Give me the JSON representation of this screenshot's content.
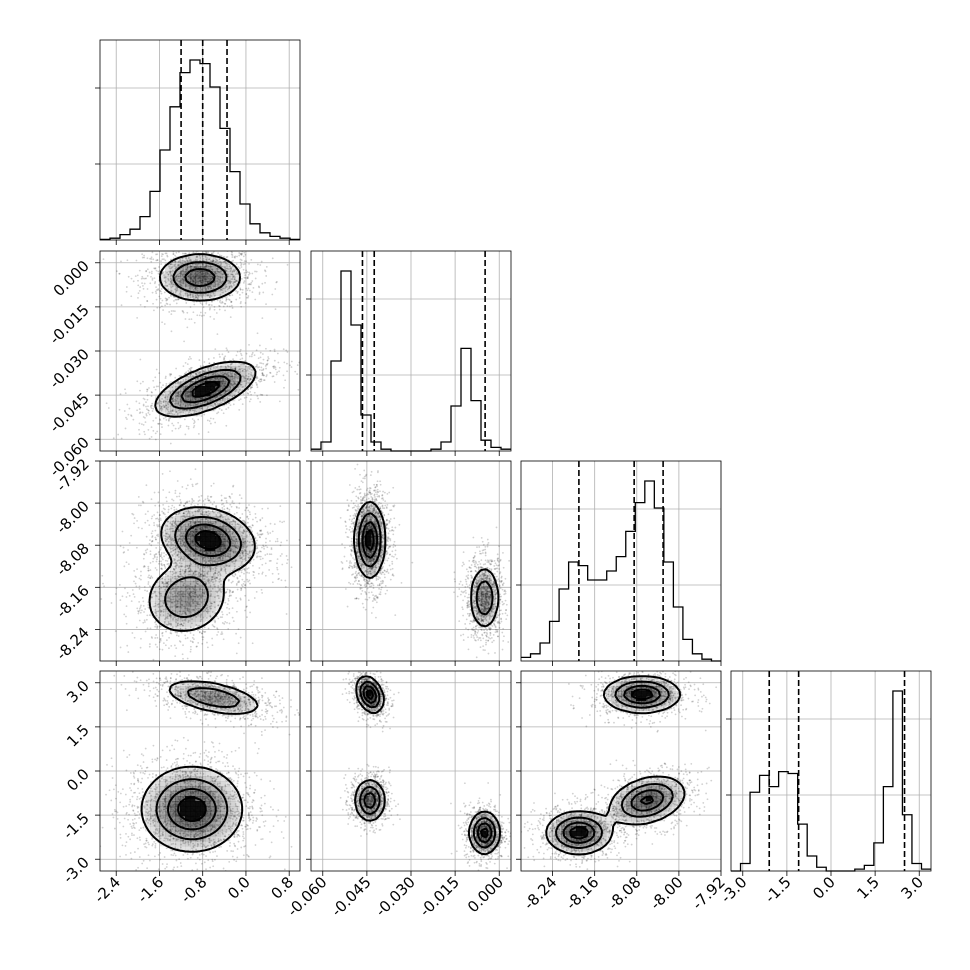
{
  "chart_data": {
    "type": "corner",
    "grid": true,
    "params": [
      {
        "range": [
          -2.7,
          1.0
        ],
        "ticks": [
          "-2.4",
          "-1.6",
          "-0.8",
          "0.0",
          "0.8"
        ],
        "tick_values": [
          -2.4,
          -1.6,
          -0.8,
          0.0,
          0.8
        ]
      },
      {
        "range": [
          -0.064,
          0.004
        ],
        "ticks": [
          "-0.060",
          "-0.045",
          "-0.030",
          "-0.015",
          "0.000"
        ],
        "tick_values": [
          -0.06,
          -0.045,
          -0.03,
          -0.015,
          0.0
        ]
      },
      {
        "range": [
          -8.3,
          -7.92
        ],
        "ticks": [
          "-8.24",
          "-8.16",
          "-8.08",
          "-8.00",
          "-7.92"
        ],
        "tick_values": [
          -8.24,
          -8.16,
          -8.08,
          -8.0,
          -7.92
        ]
      },
      {
        "range": [
          -3.4,
          3.4
        ],
        "ticks": [
          "-3.0",
          "-1.5",
          "0.0",
          "1.5",
          "3.0"
        ],
        "tick_values": [
          -3.0,
          -1.5,
          0.0,
          1.5,
          3.0
        ]
      }
    ],
    "histograms": [
      {
        "param": 0,
        "counts": [
          0.003,
          0.01,
          0.03,
          0.06,
          0.13,
          0.27,
          0.5,
          0.74,
          0.93,
          1.0,
          0.98,
          0.85,
          0.62,
          0.38,
          0.2,
          0.09,
          0.04,
          0.02,
          0.01,
          0.003
        ],
        "quantiles": [
          -1.2,
          -0.8,
          -0.35
        ]
      },
      {
        "param": 1,
        "counts": [
          0.01,
          0.05,
          0.5,
          1.0,
          0.7,
          0.2,
          0.05,
          0.01,
          0.0,
          0.0,
          0.0,
          0.0,
          0.01,
          0.05,
          0.25,
          0.57,
          0.28,
          0.06,
          0.02,
          0.01
        ],
        "quantiles": [
          -0.0465,
          -0.0425,
          -0.0048
        ]
      },
      {
        "param": 2,
        "counts": [
          0.02,
          0.04,
          0.1,
          0.22,
          0.4,
          0.55,
          0.53,
          0.45,
          0.45,
          0.5,
          0.58,
          0.72,
          0.88,
          1.0,
          0.85,
          0.55,
          0.3,
          0.12,
          0.04,
          0.01,
          0.0
        ],
        "quantiles": [
          -8.19,
          -8.085,
          -8.03
        ]
      },
      {
        "param": 3,
        "counts": [
          0.0,
          0.04,
          0.42,
          0.51,
          0.45,
          0.53,
          0.52,
          0.25,
          0.08,
          0.02,
          0.0,
          0.0,
          0.0,
          0.01,
          0.03,
          0.15,
          0.45,
          0.96,
          0.3,
          0.04,
          0.01
        ],
        "quantiles": [
          -2.1,
          -1.1,
          2.5
        ]
      }
    ],
    "density_2d": [
      {
        "x": 0,
        "y": 1,
        "modes": [
          {
            "center": [
              -0.85,
              -0.005
            ],
            "sd": [
              0.38,
              0.004
            ],
            "corr": 0.0,
            "weight": 0.5
          },
          {
            "center": [
              -0.75,
              -0.043
            ],
            "sd": [
              0.45,
              0.0045
            ],
            "corr": 0.6,
            "weight": 0.5
          }
        ]
      },
      {
        "x": 0,
        "y": 2,
        "modes": [
          {
            "center": [
              -0.7,
              -8.07
            ],
            "sd": [
              0.42,
              0.03
            ],
            "corr": -0.2,
            "weight": 0.62
          },
          {
            "center": [
              -1.1,
              -8.18
            ],
            "sd": [
              0.38,
              0.035
            ],
            "corr": 0.1,
            "weight": 0.38
          }
        ]
      },
      {
        "x": 0,
        "y": 3,
        "modes": [
          {
            "center": [
              -0.6,
              2.5
            ],
            "sd": [
              0.45,
              0.3
            ],
            "corr": -0.5,
            "weight": 0.35
          },
          {
            "center": [
              -1.0,
              -1.3
            ],
            "sd": [
              0.45,
              0.7
            ],
            "corr": 0.0,
            "weight": 0.65
          }
        ]
      },
      {
        "x": 1,
        "y": 2,
        "modes": [
          {
            "center": [
              -0.044,
              -8.07
            ],
            "sd": [
              0.0025,
              0.035
            ],
            "corr": 0.0,
            "weight": 0.62
          },
          {
            "center": [
              -0.005,
              -8.18
            ],
            "sd": [
              0.0025,
              0.03
            ],
            "corr": 0.0,
            "weight": 0.38
          }
        ]
      },
      {
        "x": 1,
        "y": 3,
        "modes": [
          {
            "center": [
              -0.044,
              2.6
            ],
            "sd": [
              0.0022,
              0.3
            ],
            "corr": -0.3,
            "weight": 0.35
          },
          {
            "center": [
              -0.044,
              -1.0
            ],
            "sd": [
              0.0025,
              0.35
            ],
            "corr": 0.0,
            "weight": 0.3
          },
          {
            "center": [
              -0.005,
              -2.1
            ],
            "sd": [
              0.0025,
              0.35
            ],
            "corr": 0.0,
            "weight": 0.35
          }
        ]
      },
      {
        "x": 2,
        "y": 3,
        "modes": [
          {
            "center": [
              -8.07,
              2.6
            ],
            "sd": [
              0.035,
              0.3
            ],
            "corr": 0.0,
            "weight": 0.35
          },
          {
            "center": [
              -8.06,
              -1.0
            ],
            "sd": [
              0.035,
              0.4
            ],
            "corr": 0.3,
            "weight": 0.3
          },
          {
            "center": [
              -8.19,
              -2.1
            ],
            "sd": [
              0.03,
              0.35
            ],
            "corr": 0.0,
            "weight": 0.35
          }
        ]
      }
    ]
  }
}
